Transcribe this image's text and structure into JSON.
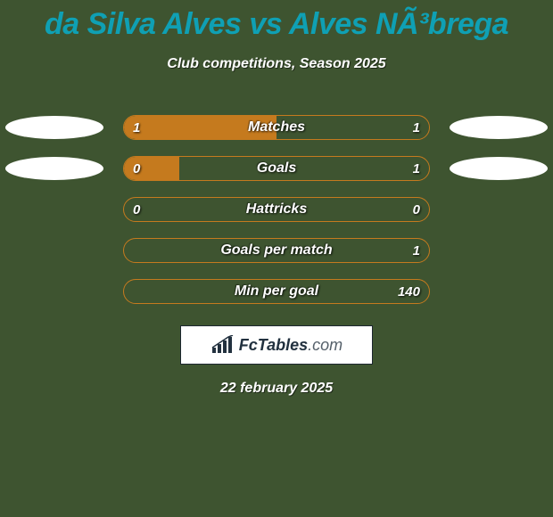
{
  "background_color": "#3e5430",
  "title": {
    "text": "da Silva Alves vs Alves NÃ³brega",
    "color": "#0fa0b4",
    "fontsize": 34
  },
  "subtitle": {
    "text": "Club competitions, Season 2025",
    "color": "#ffffff",
    "fontsize": 16
  },
  "ellipse_color": "#ffffff",
  "bar_style": {
    "track_color": "transparent",
    "border_color": "#c57a1e",
    "fill_color": "#c57a1e",
    "label_color": "#ffffff"
  },
  "rows": [
    {
      "label": "Matches",
      "left": "1",
      "right": "1",
      "fill_pct": 50,
      "show_ellipses": true
    },
    {
      "label": "Goals",
      "left": "0",
      "right": "1",
      "fill_pct": 18,
      "show_ellipses": true
    },
    {
      "label": "Hattricks",
      "left": "0",
      "right": "0",
      "fill_pct": 0,
      "show_ellipses": false
    },
    {
      "label": "Goals per match",
      "left": "",
      "right": "1",
      "fill_pct": 0,
      "show_ellipses": false
    },
    {
      "label": "Min per goal",
      "left": "",
      "right": "140",
      "fill_pct": 0,
      "show_ellipses": false
    }
  ],
  "logo": {
    "text_bold": "FcTables",
    "text_light": ".com",
    "icon_color": "#22313f"
  },
  "date": {
    "text": "22 february 2025",
    "color": "#ffffff"
  }
}
